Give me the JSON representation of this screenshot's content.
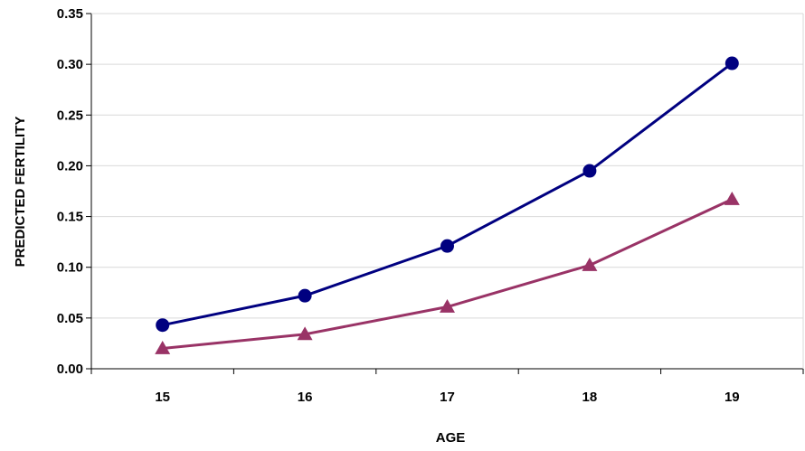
{
  "chart_data": {
    "type": "line",
    "title": "",
    "xlabel": "AGE",
    "ylabel": "PREDICTED FERTILITY",
    "categories": [
      "15",
      "16",
      "17",
      "18",
      "19"
    ],
    "ylim": [
      0,
      0.35
    ],
    "yticks": [
      0.0,
      0.05,
      0.1,
      0.15,
      0.2,
      0.25,
      0.3,
      0.35
    ],
    "ytick_labels": [
      "0.00",
      "0.05",
      "0.10",
      "0.15",
      "0.20",
      "0.25",
      "0.30",
      "0.35"
    ],
    "grid": true,
    "legend": "none",
    "series": [
      {
        "values": [
          0.043,
          0.072,
          0.121,
          0.195,
          0.301
        ],
        "color": "#000080",
        "marker": "circle"
      },
      {
        "values": [
          0.02,
          0.034,
          0.061,
          0.102,
          0.167
        ],
        "color": "#993366",
        "marker": "triangle"
      }
    ]
  }
}
